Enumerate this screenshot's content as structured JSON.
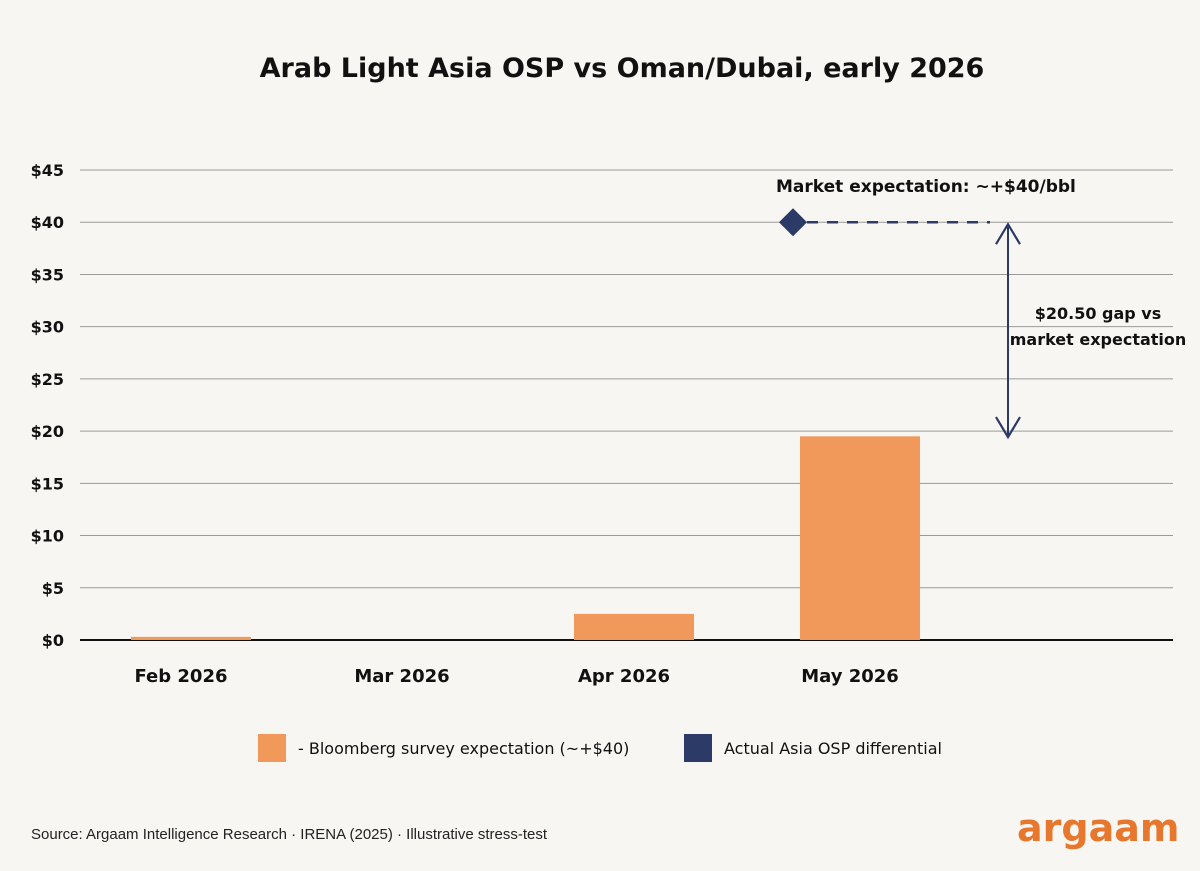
{
  "brand": {
    "logo": "argaam",
    "orange": "#f0995a",
    "navy": "#2b3a67"
  },
  "source": "Source: Argaam Intelligence Research · IRENA (2025) · Illustrative stress-test",
  "chart_data": {
    "type": "bar",
    "title": "Arab Light Asia OSP vs Oman/Dubai, early 2026",
    "categories": [
      "Feb 2026",
      "Mar 2026",
      "Apr 2026",
      "May 2026"
    ],
    "series": [
      {
        "name": "- Bloomberg survey expectation (~+$40)",
        "color": "#f0995a",
        "values": [
          0.3,
          0,
          2.5,
          19.5
        ]
      }
    ],
    "marker": {
      "name": "Actual Asia OSP differential",
      "color": "#2b3a67",
      "category": "May 2026",
      "value": 40
    },
    "ylim": [
      0,
      45
    ],
    "yticks": [
      0,
      5,
      10,
      15,
      20,
      25,
      30,
      35,
      40,
      45
    ],
    "ytick_labels": [
      "$0",
      "$5",
      "$10",
      "$15",
      "$20",
      "$25",
      "$30",
      "$35",
      "$40",
      "$45"
    ],
    "grid": true,
    "legend_position": "bottom",
    "annotations": {
      "market_expectation": "Market expectation: ~+$40/bbl",
      "gap_line1": "$20.50 gap vs",
      "gap_line2": "market expectation",
      "gap_from": 40,
      "gap_to": 20
    }
  }
}
